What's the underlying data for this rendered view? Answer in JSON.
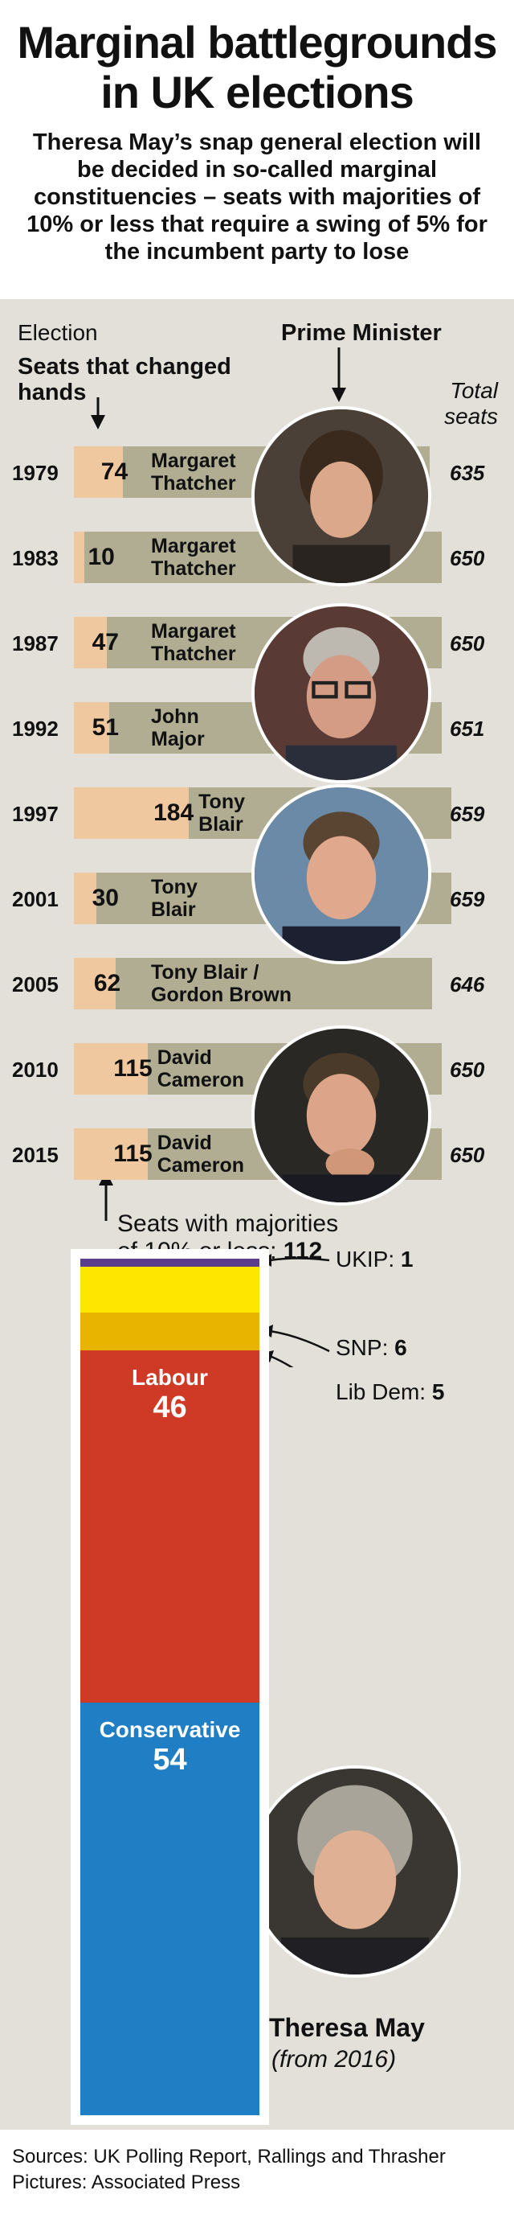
{
  "header": {
    "title_line1": "Marginal battlegrounds",
    "title_line2": "in UK elections",
    "subtitle": "Theresa May’s snap general election will be decided in so-called marginal constituencies – seats with majorities of 10% or less that require a swing of 5% for the incumbent party to lose"
  },
  "labels": {
    "election": "Election",
    "seats_changed_line1": "Seats that changed",
    "seats_changed_line2": "hands",
    "prime_minister": "Prime Minister",
    "total_line1": "Total",
    "total_line2": "seats",
    "marginal_line1": "Seats with majorities",
    "marginal_line2_text": "of 10% or less: ",
    "marginal_line2_value": "112",
    "theresa_name": "Theresa May",
    "theresa_note": "(from 2016)"
  },
  "chart_data": [
    {
      "type": "bar",
      "title": "",
      "categories": [
        "1979",
        "1983",
        "1987",
        "1992",
        "1997",
        "2001",
        "2005",
        "2010",
        "2015"
      ],
      "series": [
        {
          "name": "Seats that changed hands",
          "values": [
            74,
            10,
            47,
            51,
            184,
            30,
            62,
            115,
            115
          ]
        },
        {
          "name": "Total seats",
          "values": [
            635,
            650,
            650,
            651,
            659,
            659,
            646,
            650,
            650
          ]
        }
      ],
      "prime_ministers": [
        [
          "Margaret",
          "Thatcher"
        ],
        [
          "Margaret",
          "Thatcher"
        ],
        [
          "Margaret",
          "Thatcher"
        ],
        [
          "John",
          "Major"
        ],
        [
          "Tony",
          "Blair"
        ],
        [
          "Tony",
          "Blair"
        ],
        [
          "Tony Blair /",
          "Gordon Brown"
        ],
        [
          "David",
          "Cameron"
        ],
        [
          "David",
          "Cameron"
        ]
      ]
    },
    {
      "type": "bar",
      "title": "",
      "stacked": true,
      "total": 112,
      "segments": [
        {
          "name": "Conservative",
          "value": 54,
          "color": "#1f7ec4"
        },
        {
          "name": "Labour",
          "value": 46,
          "color": "#cf3a27"
        },
        {
          "name": "Lib Dem",
          "value": 5,
          "color": "#e8b400"
        },
        {
          "name": "SNP",
          "value": 6,
          "color": "#ffe600"
        },
        {
          "name": "UKIP",
          "value": 1,
          "color": "#5b3f8c"
        }
      ]
    }
  ],
  "footer": {
    "sources": "Sources: UK Polling Report, Rallings and Thrasher",
    "pictures": "Pictures: Associated Press"
  },
  "colors": {
    "outer_bar": "#b0ad93",
    "inner_bar": "#f0c8a0",
    "background": "#e2e0d8"
  },
  "icons": [
    "down-arrow-icon",
    "up-arrow-icon",
    "left-arrow-icon",
    "portrait-photo"
  ]
}
